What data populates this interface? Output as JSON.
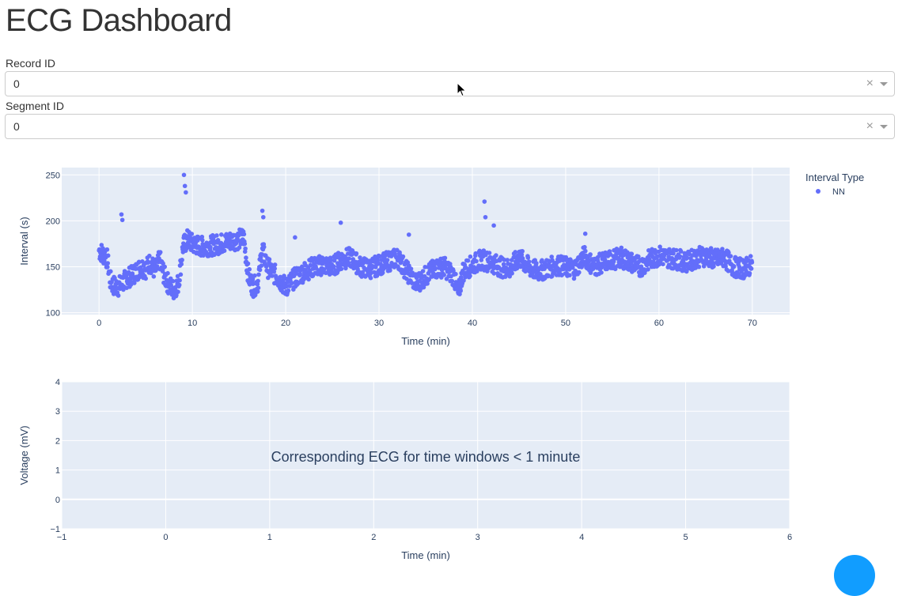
{
  "page": {
    "title": "ECG Dashboard"
  },
  "filters": {
    "record": {
      "label": "Record ID",
      "value": "0",
      "clear_glyph": "×"
    },
    "segment": {
      "label": "Segment ID",
      "value": "0",
      "clear_glyph": "×"
    }
  },
  "colors": {
    "marker": "#636efa",
    "plot_bg": "#e5ecf6",
    "grid": "#ffffff",
    "fab": "#119dff"
  },
  "chart_data": [
    {
      "type": "scatter",
      "xlabel": "Time (min)",
      "ylabel": "Interval (s)",
      "xlim": [
        -4,
        74
      ],
      "ylim": [
        98,
        258
      ],
      "x_ticks": [
        0,
        10,
        20,
        30,
        40,
        50,
        60,
        70
      ],
      "y_ticks": [
        100,
        150,
        200,
        250
      ],
      "grid": true,
      "legend_position": "right",
      "legend_title": "Interval Type",
      "series": [
        {
          "name": "NN",
          "x": [
            0,
            0.3,
            0.6,
            0.9,
            1.2,
            1.5,
            2,
            2.5,
            3,
            3.5,
            4,
            4.5,
            5,
            5.5,
            6,
            6.5,
            7,
            7.5,
            8,
            8.5,
            9,
            9.5,
            10,
            11,
            12,
            13,
            14,
            15,
            15.5,
            16,
            16.5,
            17,
            17.5,
            18,
            19,
            20,
            21,
            22,
            23,
            24,
            25,
            26,
            27,
            28,
            29,
            30,
            31,
            32,
            33,
            34,
            35,
            36,
            37,
            38,
            38.5,
            39,
            40,
            41,
            42,
            43,
            44,
            45,
            46,
            47,
            48,
            49,
            50,
            51,
            52,
            53,
            54,
            55,
            56,
            57,
            58,
            59,
            60,
            61,
            62,
            63,
            64,
            65,
            66,
            67,
            68,
            69,
            70
          ],
          "y": [
            168,
            165,
            162,
            158,
            135,
            130,
            128,
            132,
            138,
            140,
            145,
            150,
            148,
            155,
            145,
            158,
            140,
            130,
            125,
            132,
            172,
            180,
            175,
            172,
            173,
            175,
            178,
            180,
            182,
            140,
            128,
            132,
            170,
            150,
            140,
            128,
            138,
            145,
            150,
            152,
            150,
            158,
            160,
            150,
            148,
            152,
            156,
            160,
            145,
            132,
            140,
            148,
            150,
            140,
            120,
            145,
            152,
            158,
            155,
            150,
            148,
            160,
            150,
            145,
            148,
            152,
            150,
            148,
            162,
            150,
            155,
            158,
            160,
            155,
            150,
            158,
            162,
            160,
            158,
            155,
            160,
            162,
            158,
            160,
            150,
            148,
            152
          ]
        }
      ],
      "outliers": {
        "x": [
          2.4,
          2.5,
          9.1,
          9.2,
          9.3,
          17.5,
          17.6,
          21,
          25.9,
          33.2,
          41.3,
          41.4,
          42.3,
          52.1
        ],
        "y": [
          207,
          201,
          250,
          238,
          231,
          211,
          204,
          182,
          198,
          185,
          221,
          204,
          195,
          186
        ]
      }
    },
    {
      "type": "line",
      "xlabel": "Time (min)",
      "ylabel": "Voltage (mV)",
      "xlim": [
        -1,
        6
      ],
      "ylim": [
        -1,
        4
      ],
      "x_ticks": [
        -1,
        0,
        1,
        2,
        3,
        4,
        5,
        6
      ],
      "y_ticks": [
        -1,
        0,
        1,
        2,
        3,
        4
      ],
      "grid": true,
      "annotation": "Corresponding ECG for time windows < 1 minute",
      "series": []
    }
  ]
}
